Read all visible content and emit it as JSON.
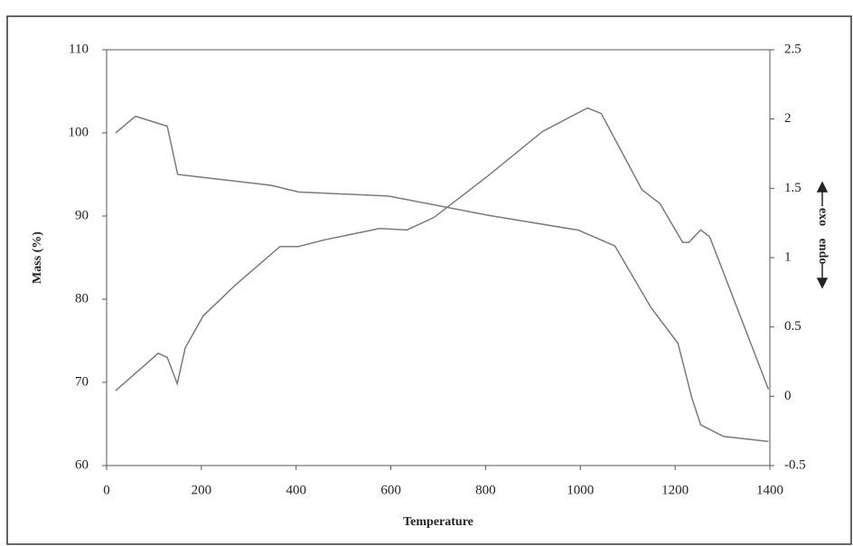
{
  "chart_data": {
    "type": "line",
    "xlabel": "Temperature",
    "ylabel": "Mass (%)",
    "y2label_upper": "exo",
    "y2label_lower": "endo",
    "xlim": [
      0,
      1400
    ],
    "xticks": [
      0,
      200,
      400,
      600,
      800,
      1000,
      1200,
      1400
    ],
    "ylim": [
      60,
      110
    ],
    "yticks": [
      60,
      70,
      80,
      90,
      100,
      110
    ],
    "y2lim": [
      -0.5,
      2.5
    ],
    "y2ticks": [
      -0.5,
      0,
      0.5,
      1,
      1.5,
      2,
      2.5
    ],
    "series": [
      {
        "color": "#7a7a7a",
        "x": [
          19,
          61,
          128,
          150,
          195,
          347,
          405,
          595,
          805,
          996,
          1073,
          1149,
          1206,
          1235,
          1254,
          1302,
          1397
        ],
        "values": [
          100,
          102,
          100.8,
          95,
          94.7,
          93.7,
          92.9,
          92.4,
          90.1,
          88.3,
          86.4,
          79,
          74.7,
          68.2,
          64.9,
          63.5,
          62.9
        ]
      },
      {
        "color": "#7a7a7a",
        "axis": "y2",
        "x": [
          19,
          109,
          128,
          149,
          166,
          204,
          271,
          366,
          405,
          462,
          576,
          634,
          691,
          805,
          920,
          1015,
          1044,
          1130,
          1168,
          1216,
          1229,
          1254,
          1273,
          1397
        ],
        "values": [
          0.04,
          0.31,
          0.28,
          0.09,
          0.35,
          0.58,
          0.8,
          1.08,
          1.08,
          1.13,
          1.21,
          1.2,
          1.29,
          1.59,
          1.91,
          2.08,
          2.04,
          1.49,
          1.39,
          1.11,
          1.11,
          1.2,
          1.15,
          0.05
        ]
      }
    ]
  }
}
